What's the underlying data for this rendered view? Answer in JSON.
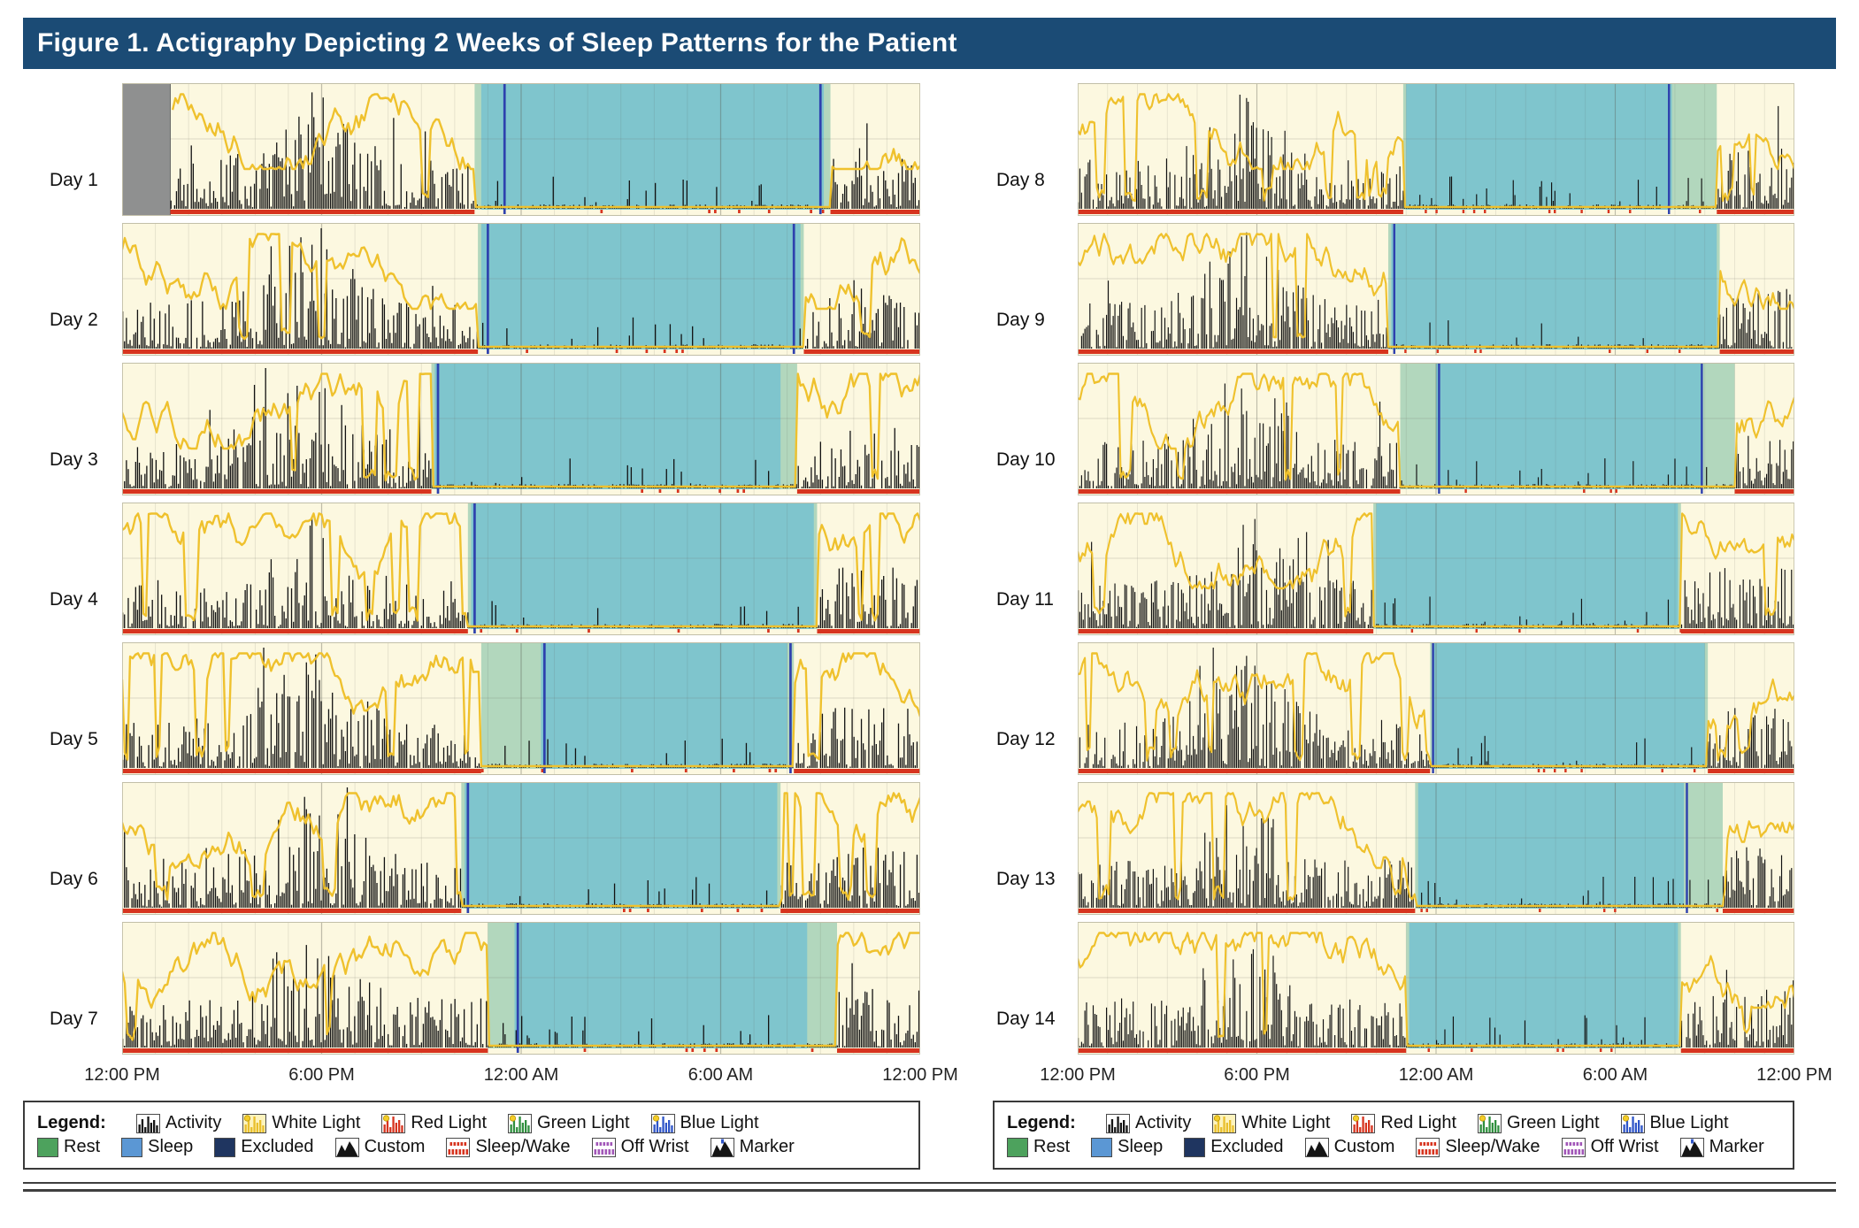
{
  "figure": {
    "title": "Figure 1. Actigraphy Depicting 2 Weeks of Sleep Patterns for the Patient"
  },
  "axis": {
    "ticks": [
      "12:00 PM",
      "6:00 PM",
      "12:00 AM",
      "6:00 AM",
      "12:00 PM"
    ]
  },
  "legend": {
    "heading": "Legend:",
    "row1": [
      {
        "icon": "activity",
        "label": "Activity"
      },
      {
        "icon": "white-light",
        "label": "White Light"
      },
      {
        "icon": "red-light",
        "label": "Red Light"
      },
      {
        "icon": "green-light",
        "label": "Green Light"
      },
      {
        "icon": "blue-light",
        "label": "Blue Light"
      }
    ],
    "row2": [
      {
        "icon": "rest",
        "label": "Rest"
      },
      {
        "icon": "sleep",
        "label": "Sleep"
      },
      {
        "icon": "excluded",
        "label": "Excluded"
      },
      {
        "icon": "custom",
        "label": "Custom"
      },
      {
        "icon": "sleep-wake",
        "label": "Sleep/Wake"
      },
      {
        "icon": "off-wrist",
        "label": "Off Wrist"
      },
      {
        "icon": "marker",
        "label": "Marker"
      }
    ]
  },
  "colors": {
    "header_bg": "#1b4b75",
    "plot_bg": "#fcf8e0",
    "sleep_fill": "#7fc5cd",
    "rest_fill": "#b2d7bd",
    "activity": "#121212",
    "light_line": "#efc12d",
    "red": "#d7341f",
    "marker_line": "#2e41ae",
    "excluded_fill": "#8f9090",
    "legend_rest": "#4da25d",
    "legend_sleep": "#5b97d4",
    "legend_excluded": "#1f3560"
  },
  "chart_data": {
    "type": "bar",
    "description": "Two-week actigraphy double plot. Each strip covers 24 h from 12:00 PM to 12:00 PM. Black bars = activity counts, yellow trace = white light exposure, red baseline = scored wake (sparse red ticks during sleep), teal shading = scored sleep interval, pale green shading = rest interval, dark blue vertical lines = interval markers, gray block = excluded/off-wrist data. Hours are offsets from 12:00 PM.",
    "x_axis": {
      "range_hours": [
        0,
        24
      ],
      "tick_hours": [
        0,
        6,
        12,
        18,
        24
      ],
      "tick_labels": [
        "12:00 PM",
        "6:00 PM",
        "12:00 AM",
        "6:00 AM",
        "12:00 PM"
      ]
    },
    "days": [
      {
        "label": "Day 1",
        "column": "left",
        "activity_seed": 101,
        "excluded_intervals_h": [
          [
            0,
            1.45
          ]
        ],
        "rest_interval_h": [
          10.6,
          21.3
        ],
        "sleep_interval_h": [
          10.8,
          21.1
        ],
        "marker_lines_h": [
          11.5,
          21.0
        ]
      },
      {
        "label": "Day 2",
        "column": "left",
        "activity_seed": 102,
        "excluded_intervals_h": [],
        "rest_interval_h": [
          10.7,
          20.5
        ],
        "sleep_interval_h": [
          10.8,
          20.4
        ],
        "marker_lines_h": [
          11.0,
          20.2
        ]
      },
      {
        "label": "Day 3",
        "column": "left",
        "activity_seed": 103,
        "excluded_intervals_h": [],
        "rest_interval_h": [
          9.3,
          20.3
        ],
        "sleep_interval_h": [
          9.4,
          19.8
        ],
        "marker_lines_h": [
          9.5
        ]
      },
      {
        "label": "Day 4",
        "column": "left",
        "activity_seed": 104,
        "excluded_intervals_h": [],
        "rest_interval_h": [
          10.4,
          20.9
        ],
        "sleep_interval_h": [
          10.5,
          20.8
        ],
        "marker_lines_h": [
          10.6
        ]
      },
      {
        "label": "Day 5",
        "column": "left",
        "activity_seed": 105,
        "excluded_intervals_h": [],
        "rest_interval_h": [
          10.8,
          20.2
        ],
        "sleep_interval_h": [
          12.6,
          20.0
        ],
        "marker_lines_h": [
          12.7,
          20.1
        ]
      },
      {
        "label": "Day 6",
        "column": "left",
        "activity_seed": 106,
        "excluded_intervals_h": [],
        "rest_interval_h": [
          10.2,
          19.8
        ],
        "sleep_interval_h": [
          10.3,
          19.7
        ],
        "marker_lines_h": [
          10.4
        ]
      },
      {
        "label": "Day 7",
        "column": "left",
        "activity_seed": 107,
        "excluded_intervals_h": [],
        "rest_interval_h": [
          11.0,
          21.5
        ],
        "sleep_interval_h": [
          11.8,
          20.6
        ],
        "marker_lines_h": [
          11.9
        ]
      },
      {
        "label": "Day 8",
        "column": "right",
        "activity_seed": 108,
        "excluded_intervals_h": [],
        "rest_interval_h": [
          10.9,
          21.4
        ],
        "sleep_interval_h": [
          11.0,
          19.9
        ],
        "marker_lines_h": [
          19.8
        ]
      },
      {
        "label": "Day 9",
        "column": "right",
        "activity_seed": 109,
        "excluded_intervals_h": [],
        "rest_interval_h": [
          10.4,
          21.5
        ],
        "sleep_interval_h": [
          10.5,
          21.4
        ],
        "marker_lines_h": [
          10.6
        ]
      },
      {
        "label": "Day 10",
        "column": "right",
        "activity_seed": 110,
        "excluded_intervals_h": [],
        "rest_interval_h": [
          10.8,
          22.0
        ],
        "sleep_interval_h": [
          12.0,
          20.9
        ],
        "marker_lines_h": [
          12.1,
          20.9
        ]
      },
      {
        "label": "Day 11",
        "column": "right",
        "activity_seed": 111,
        "excluded_intervals_h": [],
        "rest_interval_h": [
          9.9,
          20.2
        ],
        "sleep_interval_h": [
          10.0,
          20.1
        ],
        "marker_lines_h": []
      },
      {
        "label": "Day 12",
        "column": "right",
        "activity_seed": 112,
        "excluded_intervals_h": [],
        "rest_interval_h": [
          11.8,
          21.1
        ],
        "sleep_interval_h": [
          11.9,
          21.0
        ],
        "marker_lines_h": [
          11.9
        ]
      },
      {
        "label": "Day 13",
        "column": "right",
        "activity_seed": 113,
        "excluded_intervals_h": [],
        "rest_interval_h": [
          11.3,
          21.6
        ],
        "sleep_interval_h": [
          11.4,
          20.3
        ],
        "marker_lines_h": [
          20.4
        ]
      },
      {
        "label": "Day 14",
        "column": "right",
        "activity_seed": 114,
        "excluded_intervals_h": [],
        "rest_interval_h": [
          11.0,
          20.2
        ],
        "sleep_interval_h": [
          11.1,
          20.1
        ],
        "marker_lines_h": []
      }
    ]
  }
}
